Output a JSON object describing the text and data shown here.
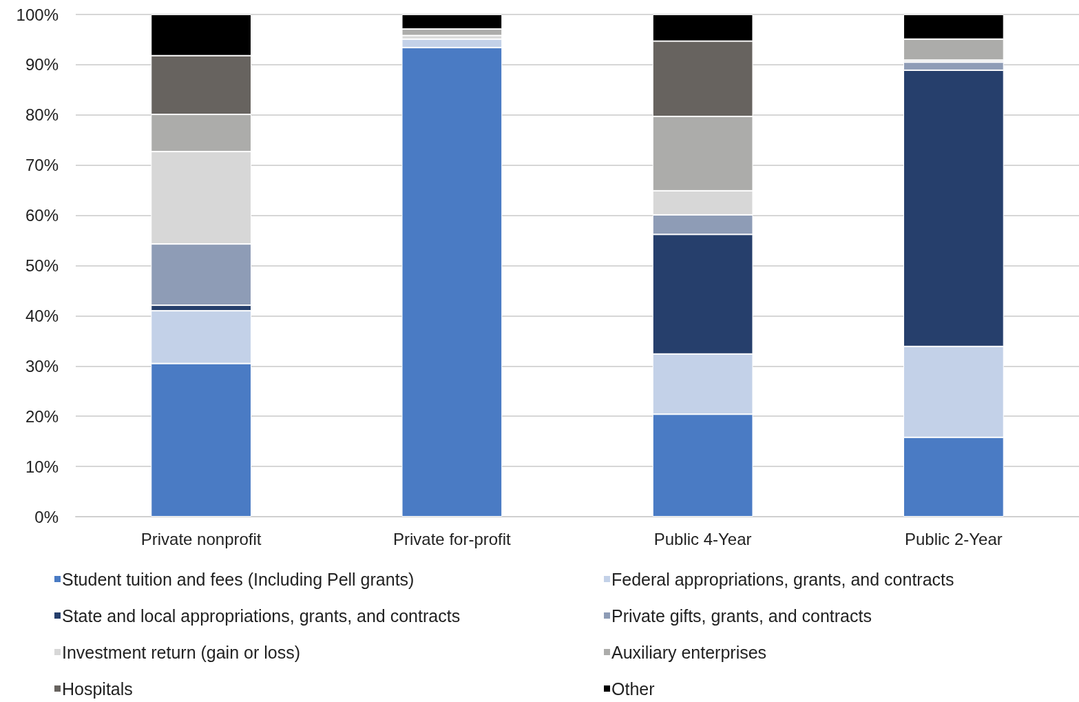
{
  "chart_data": {
    "type": "bar",
    "stacked": true,
    "categories": [
      "Private nonprofit",
      "Private for-profit",
      "Public 4-Year",
      "Public 2-Year"
    ],
    "series": [
      {
        "name": "Student tuition and fees (Including Pell grants)",
        "color": "#4a7bc4",
        "values": [
          30.5,
          93.4,
          20.4,
          15.8
        ]
      },
      {
        "name": "Federal appropriations, grants, and contracts",
        "color": "#c3d1e8",
        "values": [
          10.5,
          1.7,
          12.0,
          18.1
        ]
      },
      {
        "name": "State and local appropriations, grants, and contracts",
        "color": "#263f6c",
        "values": [
          1.1,
          0,
          23.8,
          55.0
        ]
      },
      {
        "name": "Private gifts, grants, and contracts",
        "color": "#8e9cb6",
        "values": [
          12.2,
          null,
          3.9,
          1.6
        ]
      },
      {
        "name": "Investment return (gain or loss)",
        "color": "#d7d7d7",
        "values": [
          18.4,
          0.7,
          4.8,
          0.4
        ]
      },
      {
        "name": "Auxiliary enterprises",
        "color": "#acacaa",
        "values": [
          7.4,
          1.3,
          14.8,
          4.2
        ]
      },
      {
        "name": "Hospitals",
        "color": "#67635f",
        "values": [
          11.7,
          null,
          15.0,
          0
        ]
      },
      {
        "name": "Other",
        "color": "#000000",
        "values": [
          8.2,
          2.9,
          5.3,
          4.9
        ]
      }
    ],
    "ylim": [
      0,
      100
    ],
    "yticks": [
      {
        "value": 0,
        "label": "0%"
      },
      {
        "value": 10,
        "label": "10%"
      },
      {
        "value": 20,
        "label": "20%"
      },
      {
        "value": 30,
        "label": "30%"
      },
      {
        "value": 40,
        "label": "40%"
      },
      {
        "value": 50,
        "label": "50%"
      },
      {
        "value": 60,
        "label": "60%"
      },
      {
        "value": 70,
        "label": "70%"
      },
      {
        "value": 80,
        "label": "80%"
      },
      {
        "value": 90,
        "label": "90%"
      },
      {
        "value": 100,
        "label": "100%"
      }
    ],
    "grid": "y",
    "legend": "bottom"
  }
}
